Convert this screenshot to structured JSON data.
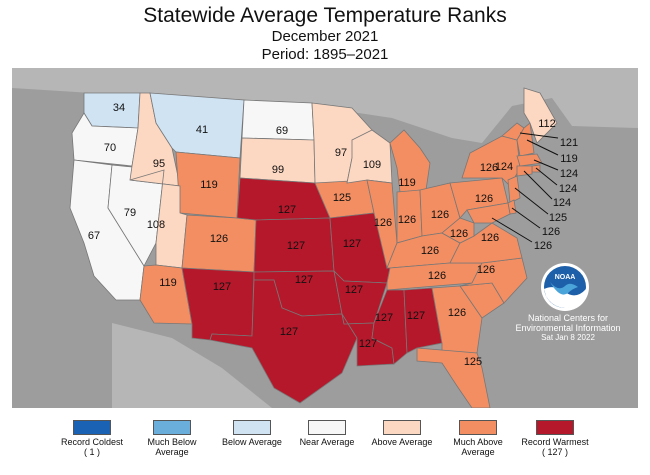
{
  "title": "Statewide Average Temperature Ranks",
  "subtitle": "December 2021",
  "period": "Period: 1895–2021",
  "colors": {
    "record_coldest": "#1a62b3",
    "much_below": "#6aaedb",
    "below": "#cfe3f3",
    "near": "#f7f7f7",
    "above": "#fcd7c1",
    "much_above": "#f28e62",
    "record_warmest": "#b5182b",
    "background": "#9d9d9d"
  },
  "legend": [
    {
      "label": "Record Coldest",
      "extra": "( 1 )",
      "key": "record_coldest"
    },
    {
      "label": "Much Below Average",
      "extra": "",
      "key": "much_below"
    },
    {
      "label": "Below Average",
      "extra": "",
      "key": "below"
    },
    {
      "label": "Near Average",
      "extra": "",
      "key": "near"
    },
    {
      "label": "Above Average",
      "extra": "",
      "key": "above"
    },
    {
      "label": "Much Above Average",
      "extra": "",
      "key": "much_above"
    },
    {
      "label": "Record Warmest",
      "extra": "( 127 )",
      "key": "record_warmest"
    }
  ],
  "agency": {
    "logo_text": "NOAA",
    "name": "National Centers for Environmental Information",
    "date": "Sat Jan  8 2022"
  },
  "states": [
    {
      "state": "WA",
      "rank": "34",
      "category": "below"
    },
    {
      "state": "OR",
      "rank": "70",
      "category": "near"
    },
    {
      "state": "CA",
      "rank": "67",
      "category": "near"
    },
    {
      "state": "NV",
      "rank": "79",
      "category": "near"
    },
    {
      "state": "ID",
      "rank": "95",
      "category": "above"
    },
    {
      "state": "MT",
      "rank": "41",
      "category": "below"
    },
    {
      "state": "WY",
      "rank": "119",
      "category": "much_above"
    },
    {
      "state": "UT",
      "rank": "108",
      "category": "above"
    },
    {
      "state": "AZ",
      "rank": "119",
      "category": "much_above"
    },
    {
      "state": "CO",
      "rank": "126",
      "category": "much_above"
    },
    {
      "state": "NM",
      "rank": "127",
      "category": "record_warmest"
    },
    {
      "state": "ND",
      "rank": "69",
      "category": "near"
    },
    {
      "state": "SD",
      "rank": "99",
      "category": "above"
    },
    {
      "state": "NE",
      "rank": "127",
      "category": "record_warmest"
    },
    {
      "state": "KS",
      "rank": "127",
      "category": "record_warmest"
    },
    {
      "state": "OK",
      "rank": "127",
      "category": "record_warmest"
    },
    {
      "state": "TX",
      "rank": "127",
      "category": "record_warmest"
    },
    {
      "state": "MN",
      "rank": "97",
      "category": "above"
    },
    {
      "state": "IA",
      "rank": "125",
      "category": "much_above"
    },
    {
      "state": "MO",
      "rank": "127",
      "category": "record_warmest"
    },
    {
      "state": "AR",
      "rank": "127",
      "category": "record_warmest"
    },
    {
      "state": "LA",
      "rank": "127",
      "category": "record_warmest"
    },
    {
      "state": "WI",
      "rank": "109",
      "category": "above"
    },
    {
      "state": "IL",
      "rank": "126",
      "category": "much_above"
    },
    {
      "state": "MI",
      "rank": "119",
      "category": "much_above"
    },
    {
      "state": "IN",
      "rank": "126",
      "category": "much_above"
    },
    {
      "state": "OH",
      "rank": "126",
      "category": "much_above"
    },
    {
      "state": "KY",
      "rank": "126",
      "category": "much_above"
    },
    {
      "state": "TN",
      "rank": "126",
      "category": "much_above"
    },
    {
      "state": "MS",
      "rank": "127",
      "category": "record_warmest"
    },
    {
      "state": "AL",
      "rank": "127",
      "category": "record_warmest"
    },
    {
      "state": "GA",
      "rank": "126",
      "category": "much_above"
    },
    {
      "state": "FL",
      "rank": "125",
      "category": "much_above"
    },
    {
      "state": "SC",
      "rank": "126",
      "category": "much_above"
    },
    {
      "state": "NC",
      "rank": "126",
      "category": "much_above"
    },
    {
      "state": "VA",
      "rank": "126",
      "category": "much_above"
    },
    {
      "state": "WV",
      "rank": "126",
      "category": "much_above"
    },
    {
      "state": "PA",
      "rank": "126",
      "category": "much_above"
    },
    {
      "state": "NY",
      "rank": "124",
      "category": "much_above"
    },
    {
      "state": "VT",
      "rank": "121",
      "category": "much_above"
    },
    {
      "state": "NH",
      "rank": "119",
      "category": "much_above"
    },
    {
      "state": "MA",
      "rank": "124",
      "category": "much_above"
    },
    {
      "state": "RI",
      "rank": "124",
      "category": "much_above"
    },
    {
      "state": "CT",
      "rank": "124",
      "category": "much_above"
    },
    {
      "state": "NJ",
      "rank": "125",
      "category": "much_above"
    },
    {
      "state": "DE",
      "rank": "126",
      "category": "much_above"
    },
    {
      "state": "MD",
      "rank": "126",
      "category": "much_above"
    },
    {
      "state": "ME",
      "rank": "112",
      "category": "above"
    }
  ]
}
